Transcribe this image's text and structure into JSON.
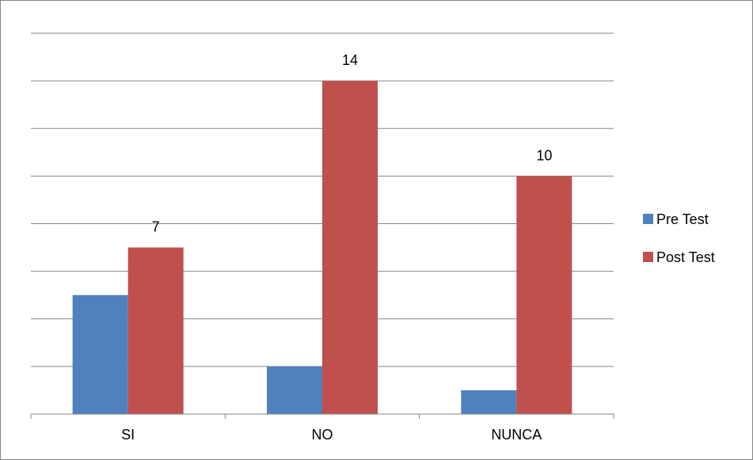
{
  "chart_data": {
    "type": "bar",
    "title": "",
    "xlabel": "",
    "ylabel": "",
    "ylim": [
      0,
      16
    ],
    "grid": true,
    "legend_position": "right",
    "categories": [
      "SI",
      "NO",
      "NUNCA"
    ],
    "series": [
      {
        "name": "Pre Test",
        "color": "#4F81BD",
        "values": [
          5,
          2,
          1
        ],
        "labels": [
          null,
          null,
          null
        ]
      },
      {
        "name": "Post Test",
        "color": "#C0504D",
        "values": [
          7,
          14,
          10
        ],
        "labels": [
          "7",
          "14",
          "10"
        ]
      }
    ]
  }
}
